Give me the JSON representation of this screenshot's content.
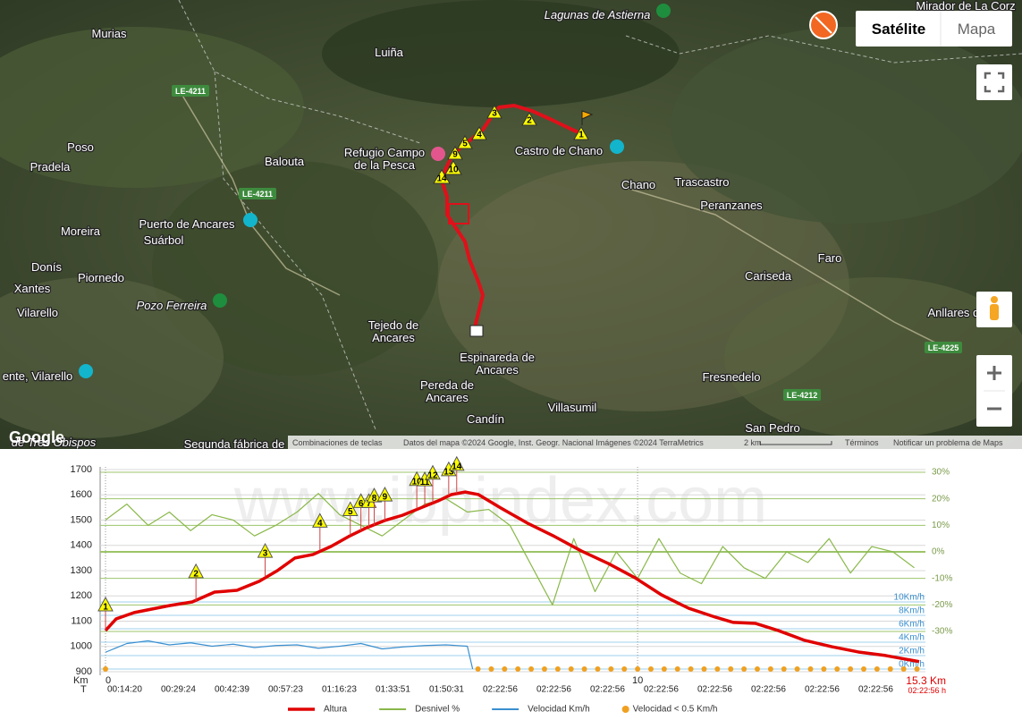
{
  "map": {
    "places": [
      "Lagunas de Astierna",
      "Mirador de La Corz",
      "Murias",
      "Luiña",
      "Poso",
      "Pradela",
      "Balouta",
      "Refugio Campo",
      "de la Pesca",
      "Castro de Chano",
      "Chano",
      "Trascastro",
      "Peranzanes",
      "Moreira",
      "Puerto de Ancares",
      "Suárbol",
      "Donís",
      "Piornedo",
      "Xantes",
      "Vilarello",
      "Pozo Ferreira",
      "Cariseda",
      "Faro",
      "Anllares de",
      "Tejedo de",
      "Ancares",
      "Espinareda de",
      "Ancares",
      "Pereda de",
      "Ancares",
      "Candín",
      "Villasumil",
      "Fresnedelo",
      "San Pedro",
      "ente, Vilarello",
      "Segunda fábrica de",
      "de Tres Obispos"
    ],
    "roads": [
      "LE-4211",
      "LE-4211",
      "LE-4225",
      "LE-4212"
    ],
    "controls": {
      "satellite": "Satélite",
      "map": "Mapa"
    },
    "logo": "Google",
    "attribution": {
      "shortcuts": "Combinaciones de teclas",
      "data": "Datos del mapa ©2024 Google, Inst. Geogr. Nacional Imágenes ©2024 TerraMetrics",
      "scale": "2 km",
      "terms": "Términos",
      "report": "Notificar un problema de Maps"
    }
  },
  "chart_data": {
    "type": "line",
    "watermark": "www.ibpindex.com",
    "x_label": "Km",
    "time_axis_label": "T",
    "xlim": [
      0,
      15.3
    ],
    "xticks": [
      0,
      10
    ],
    "ylim": [
      900,
      1700
    ],
    "yticks": [
      900,
      1000,
      1100,
      1200,
      1300,
      1400,
      1500,
      1600,
      1700
    ],
    "y2lim": [
      -30,
      30
    ],
    "y2ticks": [
      {
        "value": 30,
        "label": "30%"
      },
      {
        "value": 20,
        "label": "20%"
      },
      {
        "value": 10,
        "label": "10%"
      },
      {
        "value": 0,
        "label": "0%"
      },
      {
        "value": -10,
        "label": "-10%"
      },
      {
        "value": -20,
        "label": "-20%"
      },
      {
        "value": -30,
        "label": "-30%"
      }
    ],
    "y3lim": [
      0,
      10
    ],
    "y3ticks": [
      {
        "value": 10,
        "label": "10Km/h"
      },
      {
        "value": 8,
        "label": "8Km/h"
      },
      {
        "value": 6,
        "label": "6Km/h"
      },
      {
        "value": 4,
        "label": "4Km/h"
      },
      {
        "value": 2,
        "label": "2Km/h"
      },
      {
        "value": 0,
        "label": "0Km/h"
      }
    ],
    "time_labels": [
      "00:14:20",
      "00:29:24",
      "00:42:39",
      "00:57:23",
      "01:16:23",
      "01:33:51",
      "01:50:31",
      "02:22:56",
      "02:22:56",
      "02:22:56",
      "02:22:56",
      "02:22:56",
      "02:22:56",
      "02:22:56",
      "02:22:56"
    ],
    "end_distance_label": "15.3 Km",
    "end_time_label": "02:22:56 h",
    "legend": "bottom",
    "series": [
      {
        "name": "Altura",
        "color": "#e00000",
        "type": "line",
        "x": [
          0,
          0.2,
          0.54,
          1.21,
          1.63,
          2.05,
          2.47,
          2.89,
          3.23,
          3.56,
          3.9,
          4.24,
          4.57,
          4.91,
          5.24,
          5.58,
          5.92,
          6.25,
          6.5,
          6.76,
          7.01,
          7.43,
          7.93,
          8.44,
          8.94,
          9.45,
          9.95,
          10.45,
          10.96,
          11.46,
          11.8,
          12.22,
          12.64,
          13.14,
          13.65,
          14.15,
          14.66,
          15.29
        ],
        "values": [
          1063,
          1109,
          1134,
          1162,
          1176,
          1215,
          1222,
          1258,
          1300,
          1350,
          1364,
          1396,
          1435,
          1470,
          1498,
          1519,
          1548,
          1576,
          1601,
          1611,
          1601,
          1548,
          1488,
          1435,
          1378,
          1328,
          1272,
          1204,
          1151,
          1116,
          1095,
          1091,
          1063,
          1024,
          999,
          978,
          964,
          940
        ]
      },
      {
        "name": "Desnivel %",
        "color": "#8ab84a",
        "type": "line",
        "axis": "y2",
        "x": [
          0,
          0.4,
          0.8,
          1.2,
          1.6,
          2,
          2.4,
          2.8,
          3.2,
          3.6,
          4,
          4.4,
          4.8,
          5.2,
          5.6,
          6,
          6.4,
          6.8,
          7.2,
          7.6,
          8,
          8.4,
          8.8,
          9.2,
          9.6,
          10,
          10.4,
          10.8,
          11.2,
          11.6,
          12,
          12.4,
          12.8,
          13.2,
          13.6,
          14,
          14.4,
          14.8,
          15.2
        ],
        "values": [
          12,
          18,
          10,
          15,
          8,
          14,
          12,
          6,
          10,
          15,
          22,
          14,
          10,
          6,
          12,
          18,
          20,
          15,
          16,
          10,
          -5,
          -20,
          5,
          -15,
          0,
          -10,
          5,
          -8,
          -12,
          2,
          -6,
          -10,
          0,
          -4,
          5,
          -8,
          2,
          0,
          -6
        ]
      },
      {
        "name": "Velocidad Km/h",
        "color": "#3a8fd0",
        "type": "line",
        "axis": "y3",
        "x": [
          0,
          0.4,
          0.8,
          1.2,
          1.6,
          2,
          2.4,
          2.8,
          3.2,
          3.6,
          4,
          4.4,
          4.8,
          5.2,
          5.6,
          6,
          6.4,
          6.8,
          6.9
        ],
        "values": [
          2.5,
          3.8,
          4.2,
          3.6,
          3.9,
          3.4,
          3.7,
          3.2,
          3.5,
          3.6,
          3.1,
          3.4,
          3.8,
          3,
          3.3,
          3.5,
          3.6,
          3.4,
          0
        ]
      },
      {
        "name": "Velocidad < 0.5 Km/h",
        "color": "#f0a020",
        "type": "scatter",
        "axis": "y3",
        "x": [
          0,
          7,
          7.25,
          7.5,
          7.75,
          8,
          8.25,
          8.5,
          8.75,
          9,
          9.25,
          9.5,
          9.75,
          10,
          10.25,
          10.5,
          10.75,
          11,
          11.25,
          11.5,
          11.75,
          12,
          12.25,
          12.5,
          12.75,
          13,
          13.25,
          13.5,
          13.75,
          14,
          14.25,
          14.5,
          14.75,
          15,
          15.25
        ],
        "values": [
          0,
          0,
          0,
          0,
          0,
          0,
          0,
          0,
          0,
          0,
          0,
          0,
          0,
          0,
          0,
          0,
          0,
          0,
          0,
          0,
          0,
          0,
          0,
          0,
          0,
          0,
          0,
          0,
          0,
          0,
          0,
          0,
          0,
          0,
          0
        ]
      }
    ],
    "waypoints": {
      "color": "#ffff00",
      "labels": [
        "1",
        "2",
        "3",
        "4",
        "5",
        "6",
        "7",
        "8",
        "9",
        "10",
        "11",
        "12",
        "13",
        "14"
      ],
      "x": [
        0,
        1.7,
        3.0,
        4.03,
        4.6,
        4.8,
        4.95,
        5.05,
        5.25,
        5.85,
        6.0,
        6.15,
        6.45,
        6.6
      ],
      "values": [
        1063,
        1180,
        1275,
        1380,
        1440,
        1458,
        1472,
        1480,
        1498,
        1545,
        1558,
        1570,
        1598,
        1605
      ]
    }
  }
}
